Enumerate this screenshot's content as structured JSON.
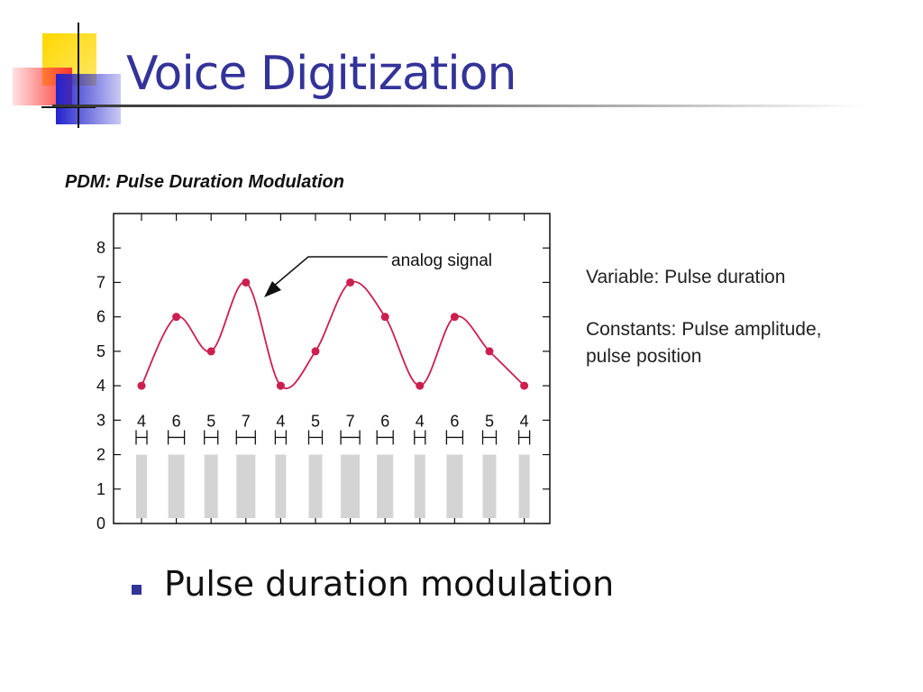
{
  "slide": {
    "title": "Voice Digitization",
    "bullet": "Pulse duration modulation"
  },
  "notes": {
    "variable": "Variable: Pulse duration",
    "constants_line1": "Constants: Pulse amplitude,",
    "constants_line2": "pulse position"
  },
  "colors": {
    "title": "#333399",
    "bullet": "#333399",
    "curve": "#cc1f4f",
    "pulse": "#d4d4d4"
  },
  "chart_data": {
    "type": "line",
    "title": "PDM:  Pulse Duration Modulation",
    "annotation": "analog signal",
    "x": [
      1,
      2,
      3,
      4,
      5,
      6,
      7,
      8,
      9,
      10,
      11,
      12
    ],
    "samples": [
      4,
      6,
      5,
      7,
      4,
      5,
      7,
      6,
      4,
      6,
      5,
      4
    ],
    "sample_labels": [
      "4",
      "6",
      "5",
      "7",
      "4",
      "5",
      "7",
      "6",
      "4",
      "6",
      "5",
      "4"
    ],
    "pulse_height": 2,
    "pulse_widths": [
      4,
      6,
      5,
      7,
      4,
      5,
      7,
      6,
      4,
      6,
      5,
      4
    ],
    "ylim": [
      0,
      9
    ],
    "yticks": [
      0,
      1,
      2,
      3,
      4,
      5,
      6,
      7,
      8
    ],
    "grid": false
  }
}
